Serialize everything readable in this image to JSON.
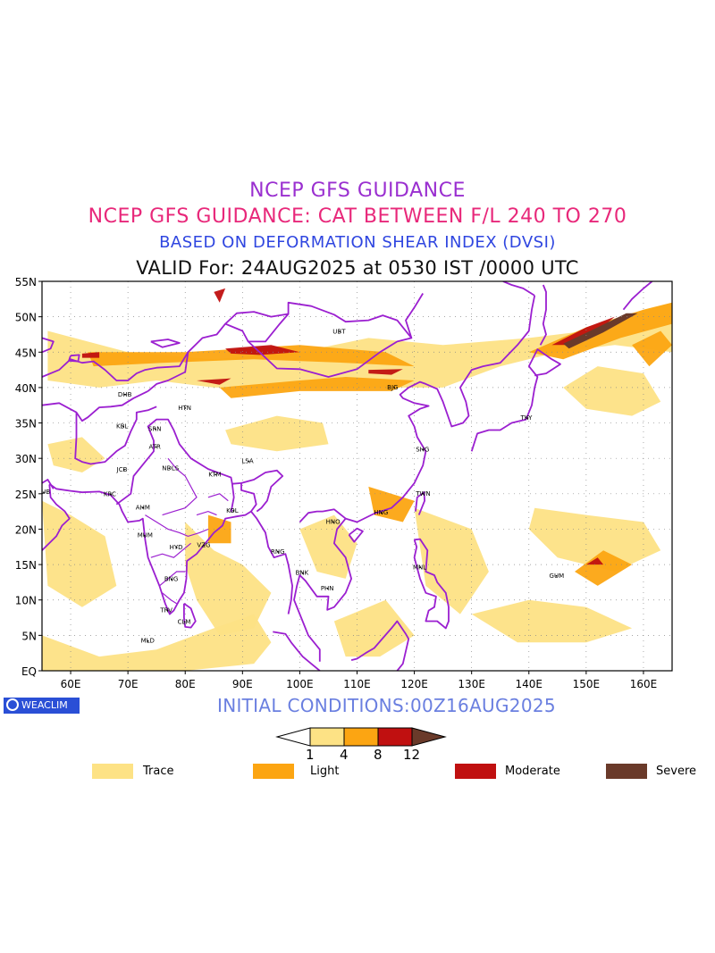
{
  "titles": {
    "line1": "NCEP GFS GUIDANCE",
    "line2": "NCEP GFS GUIDANCE: CAT BETWEEN F/L 240 TO 270",
    "line3": "BASED ON DEFORMATION SHEAR INDEX (DVSI)",
    "line4": "VALID For: 24AUG2025 at 0530 IST /0000 UTC"
  },
  "colors": {
    "line1": "#9a2fd0",
    "line2": "#e8287a",
    "line3": "#2f46e0",
    "line4": "#111111",
    "init": "#6a7fe0",
    "trace": "#fde285",
    "light": "#fca512",
    "moderate": "#c01010",
    "severe": "#6a3a2a",
    "border": "#9b1fd0"
  },
  "map": {
    "lon_range": [
      55,
      165
    ],
    "lat_range": [
      0,
      55
    ],
    "lat_labels": [
      "55N",
      "50N",
      "45N",
      "40N",
      "35N",
      "30N",
      "25N",
      "20N",
      "15N",
      "10N",
      "5N",
      "EQ"
    ],
    "lon_labels": [
      "60E",
      "70E",
      "80E",
      "90E",
      "100E",
      "110E",
      "120E",
      "130E",
      "140E",
      "150E",
      "160E"
    ],
    "stations": [
      {
        "name": "UBT",
        "lon": 107,
        "lat": 47.9
      },
      {
        "name": "BJG",
        "lon": 116.5,
        "lat": 40.0
      },
      {
        "name": "DHB",
        "lon": 69.5,
        "lat": 39.0
      },
      {
        "name": "HTN",
        "lon": 80.0,
        "lat": 37.1
      },
      {
        "name": "TKY",
        "lon": 139.8,
        "lat": 35.7
      },
      {
        "name": "KBL",
        "lon": 69.2,
        "lat": 34.5
      },
      {
        "name": "SRN",
        "lon": 74.8,
        "lat": 34.1
      },
      {
        "name": "SHG",
        "lon": 121.5,
        "lat": 31.2
      },
      {
        "name": "ATR",
        "lon": 74.9,
        "lat": 31.6
      },
      {
        "name": "LSA",
        "lon": 91.1,
        "lat": 29.6
      },
      {
        "name": "JCB",
        "lon": 69.3,
        "lat": 28.4
      },
      {
        "name": "NDLS",
        "lon": 77.2,
        "lat": 28.6
      },
      {
        "name": "KTM",
        "lon": 85.3,
        "lat": 27.7
      },
      {
        "name": "DUB",
        "lon": 55.3,
        "lat": 25.2
      },
      {
        "name": "TWN",
        "lon": 121.5,
        "lat": 25.0
      },
      {
        "name": "KRC",
        "lon": 67.0,
        "lat": 24.9
      },
      {
        "name": "AHM",
        "lon": 72.6,
        "lat": 23.0
      },
      {
        "name": "KOL",
        "lon": 88.4,
        "lat": 22.6
      },
      {
        "name": "HNG",
        "lon": 114.2,
        "lat": 22.3
      },
      {
        "name": "HNO",
        "lon": 105.8,
        "lat": 21.0
      },
      {
        "name": "MUM",
        "lon": 72.9,
        "lat": 19.1
      },
      {
        "name": "HYD",
        "lon": 78.5,
        "lat": 17.4
      },
      {
        "name": "VZG",
        "lon": 83.3,
        "lat": 17.7
      },
      {
        "name": "RNG",
        "lon": 96.2,
        "lat": 16.8
      },
      {
        "name": "MNL",
        "lon": 121.0,
        "lat": 14.6
      },
      {
        "name": "BNK",
        "lon": 100.5,
        "lat": 13.8
      },
      {
        "name": "GUM",
        "lon": 144.8,
        "lat": 13.4
      },
      {
        "name": "BNG",
        "lon": 77.6,
        "lat": 12.9
      },
      {
        "name": "PHN",
        "lon": 104.9,
        "lat": 11.6
      },
      {
        "name": "TRV",
        "lon": 76.9,
        "lat": 8.5
      },
      {
        "name": "CLM",
        "lon": 79.9,
        "lat": 6.9
      },
      {
        "name": "MLD",
        "lon": 73.5,
        "lat": 4.2
      }
    ]
  },
  "footer": {
    "badge": "WEACLIM",
    "init": "INITIAL CONDITIONS:00Z16AUG2025"
  },
  "colorbar": {
    "ticks": [
      "1",
      "4",
      "8",
      "12"
    ]
  },
  "legend": {
    "trace": "Trace",
    "light": "Light",
    "moderate": "Moderate",
    "severe": "Severe"
  }
}
